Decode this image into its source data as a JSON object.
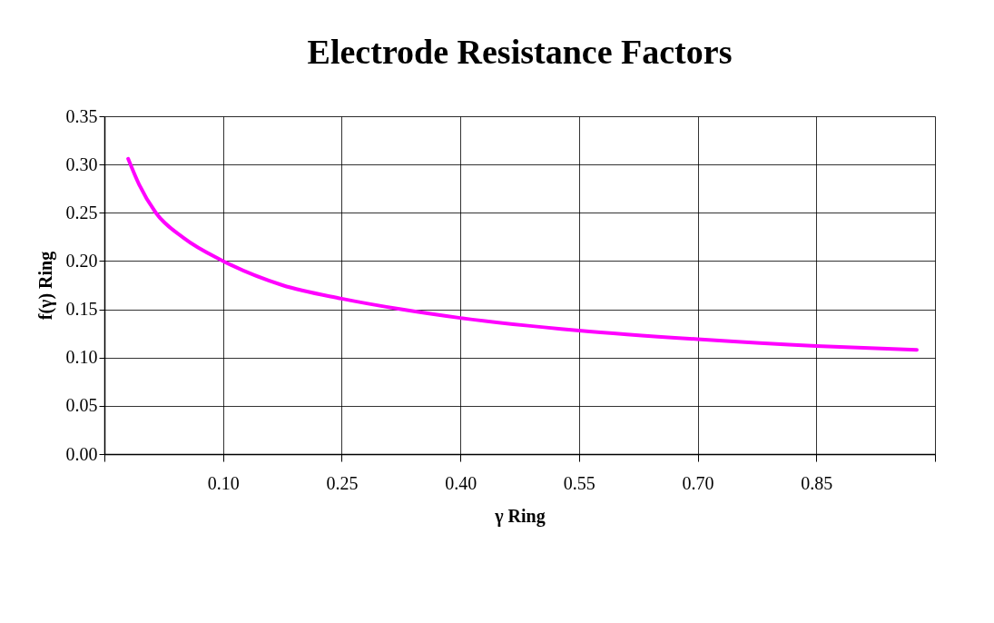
{
  "chart_data": {
    "type": "line",
    "title": "Electrode Resistance Factors",
    "xlabel": "γ Ring",
    "ylabel": "f(γ) Ring",
    "x": [
      -0.02,
      -0.006,
      0.015,
      0.05,
      0.1,
      0.175,
      0.25,
      0.325,
      0.4,
      0.55,
      0.7,
      0.85,
      0.977
    ],
    "series": [
      {
        "color": "#ff00ff",
        "values": [
          0.306,
          0.279,
          0.25,
          0.224,
          0.2,
          0.175,
          0.161,
          0.15,
          0.141,
          0.128,
          0.119,
          0.112,
          0.108
        ]
      }
    ],
    "xlim": [
      -0.05,
      1.0
    ],
    "xticks": [
      {
        "value": -0.05,
        "label": null
      },
      {
        "value": 0.1,
        "label": "0.10"
      },
      {
        "value": 0.25,
        "label": "0.25"
      },
      {
        "value": 0.4,
        "label": "0.40"
      },
      {
        "value": 0.55,
        "label": "0.55"
      },
      {
        "value": 0.7,
        "label": "0.70"
      },
      {
        "value": 0.85,
        "label": "0.85"
      },
      {
        "value": 1.0,
        "label": null
      }
    ],
    "ylim": [
      0,
      0.35
    ],
    "yticks": [
      {
        "value": 0,
        "label": "0.00"
      },
      {
        "value": 0.05,
        "label": "0.05"
      },
      {
        "value": 0.1,
        "label": "0.10"
      },
      {
        "value": 0.15,
        "label": "0.15"
      },
      {
        "value": 0.2,
        "label": "0.20"
      },
      {
        "value": 0.25,
        "label": "0.25"
      },
      {
        "value": 0.3,
        "label": "0.30"
      },
      {
        "value": 0.35,
        "label": "0.35"
      }
    ],
    "grid": true,
    "marker": "none",
    "line_style": "solid"
  }
}
